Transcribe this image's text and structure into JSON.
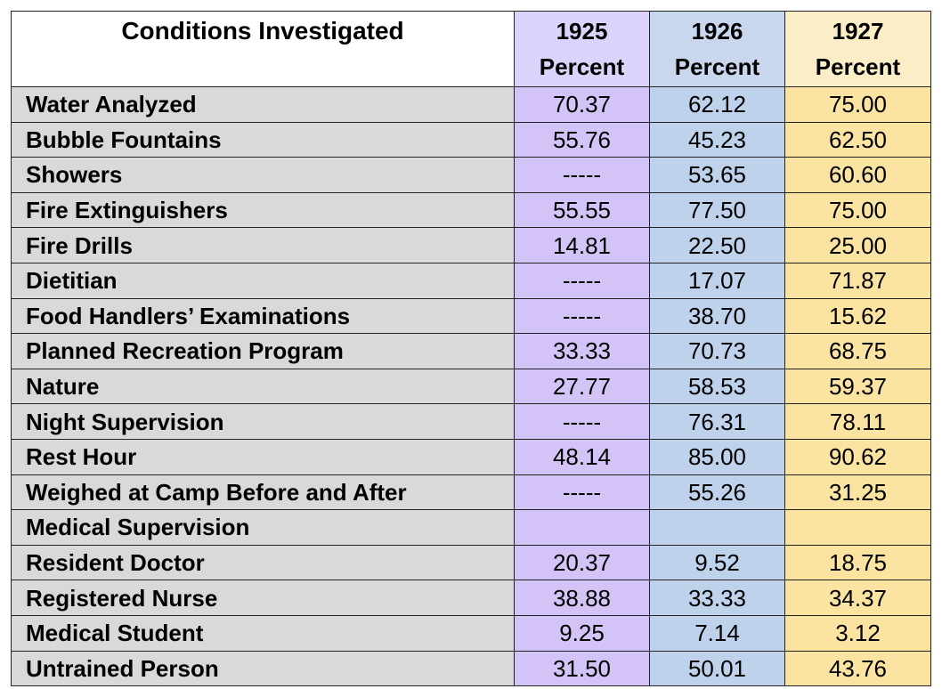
{
  "table": {
    "header": {
      "conditions": "Conditions Investigated",
      "columns": [
        {
          "year": "1925",
          "unit": "Percent"
        },
        {
          "year": "1926",
          "unit": "Percent"
        },
        {
          "year": "1927",
          "unit": "Percent"
        }
      ]
    },
    "rows": [
      {
        "label": "Water Analyzed",
        "values": [
          "70.37",
          "62.12",
          "75.00"
        ]
      },
      {
        "label": "Bubble Fountains",
        "values": [
          "55.76",
          "45.23",
          "62.50"
        ]
      },
      {
        "label": "Showers",
        "values": [
          "-----",
          "53.65",
          "60.60"
        ]
      },
      {
        "label": "Fire Extinguishers",
        "values": [
          "55.55",
          "77.50",
          "75.00"
        ]
      },
      {
        "label": "Fire Drills",
        "values": [
          "14.81",
          "22.50",
          "25.00"
        ]
      },
      {
        "label": "Dietitian",
        "values": [
          "-----",
          "17.07",
          "71.87"
        ]
      },
      {
        "label": "Food Handlers’ Examinations",
        "values": [
          "-----",
          "38.70",
          "15.62"
        ]
      },
      {
        "label": "Planned Recreation Program",
        "values": [
          "33.33",
          "70.73",
          "68.75"
        ]
      },
      {
        "label": "Nature",
        "values": [
          "27.77",
          "58.53",
          "59.37"
        ]
      },
      {
        "label": "Night Supervision",
        "values": [
          "-----",
          "76.31",
          "78.11"
        ]
      },
      {
        "label": "Rest Hour",
        "values": [
          "48.14",
          "85.00",
          "90.62"
        ]
      },
      {
        "label": "Weighed at Camp Before and After",
        "values": [
          "-----",
          "55.26",
          "31.25"
        ]
      },
      {
        "label": "Medical Supervision",
        "values": [
          "",
          "",
          ""
        ]
      },
      {
        "label": "Resident Doctor",
        "values": [
          "20.37",
          "9.52",
          "18.75"
        ]
      },
      {
        "label": "Registered Nurse",
        "values": [
          "38.88",
          "33.33",
          "34.37"
        ]
      },
      {
        "label": "Medical Student",
        "values": [
          "9.25",
          "7.14",
          "3.12"
        ]
      },
      {
        "label": "Untrained Person",
        "values": [
          "31.50",
          "50.01",
          "43.76"
        ]
      }
    ]
  },
  "colors": {
    "label_bg": "#d9d9d9",
    "col_1925": "#d3c3f7",
    "col_1926": "#bfd2ec",
    "col_1927": "#fbe3a2"
  }
}
